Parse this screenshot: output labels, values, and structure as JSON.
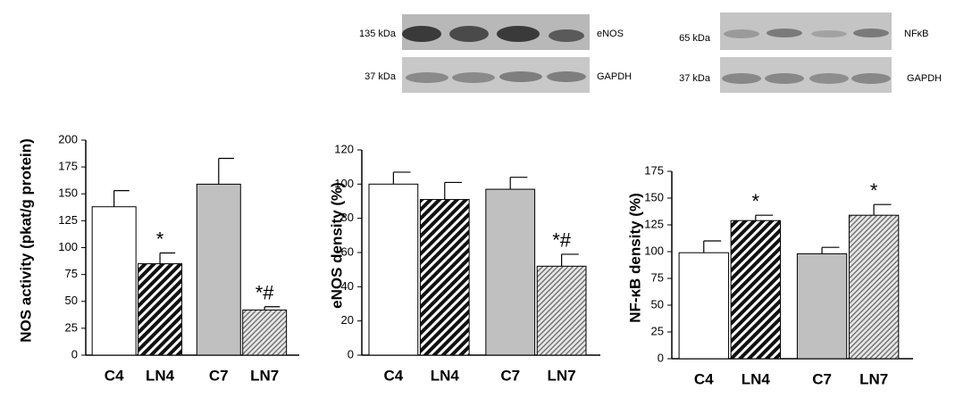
{
  "blots": [
    {
      "size": "135 kDa",
      "protein": "eNOS"
    },
    {
      "size": "37 kDa",
      "protein": "GAPDH"
    },
    {
      "size": "65 kDa",
      "protein": "NFκB"
    },
    {
      "size": "37 kDa",
      "protein": "GAPDH"
    }
  ],
  "chart_data": [
    {
      "type": "bar",
      "y_label": "NOS activity (pkat/g protein)",
      "categories": [
        "C4",
        "LN4",
        "C7",
        "LN7"
      ],
      "values": [
        138,
        85,
        159,
        42
      ],
      "errors": [
        15,
        10,
        24,
        3
      ],
      "fills": [
        "white",
        "hatch-dense",
        "gray",
        "hatch-fine"
      ],
      "annotations": [
        null,
        "*",
        null,
        "*#"
      ],
      "ylim": [
        0,
        200
      ],
      "yticks": [
        0,
        25,
        50,
        75,
        100,
        125,
        150,
        175,
        200
      ]
    },
    {
      "type": "bar",
      "y_label": "eNOS density (%)",
      "categories": [
        "C4",
        "LN4",
        "C7",
        "LN7"
      ],
      "values": [
        100,
        91,
        97,
        52
      ],
      "errors": [
        7,
        10,
        7,
        7
      ],
      "fills": [
        "white",
        "hatch-dense",
        "gray",
        "hatch-fine"
      ],
      "annotations": [
        null,
        null,
        null,
        "*#"
      ],
      "ylim": [
        0,
        120
      ],
      "yticks": [
        0,
        20,
        40,
        60,
        80,
        100,
        120
      ]
    },
    {
      "type": "bar",
      "y_label": "NF-κB density (%)",
      "categories": [
        "C4",
        "LN4",
        "C7",
        "LN7"
      ],
      "values": [
        99,
        129,
        98,
        134
      ],
      "errors": [
        11,
        5,
        6,
        10
      ],
      "fills": [
        "white",
        "hatch-dense",
        "gray",
        "hatch-fine"
      ],
      "annotations": [
        null,
        "*",
        null,
        "*"
      ],
      "ylim": [
        0,
        175
      ],
      "yticks": [
        0,
        25,
        50,
        75,
        100,
        125,
        150,
        175
      ]
    }
  ]
}
